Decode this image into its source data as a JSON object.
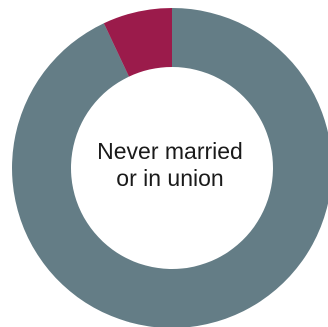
{
  "chart_data": {
    "type": "pie",
    "style": "donut",
    "center_label": {
      "line1": "Never married",
      "line2": "or in union"
    },
    "slices": [
      {
        "value": 93,
        "color": "#647d86"
      },
      {
        "value": 7,
        "color": "#9b1b4b"
      }
    ],
    "start_angle_deg": 0,
    "direction": "clockwise",
    "legend": "none"
  }
}
